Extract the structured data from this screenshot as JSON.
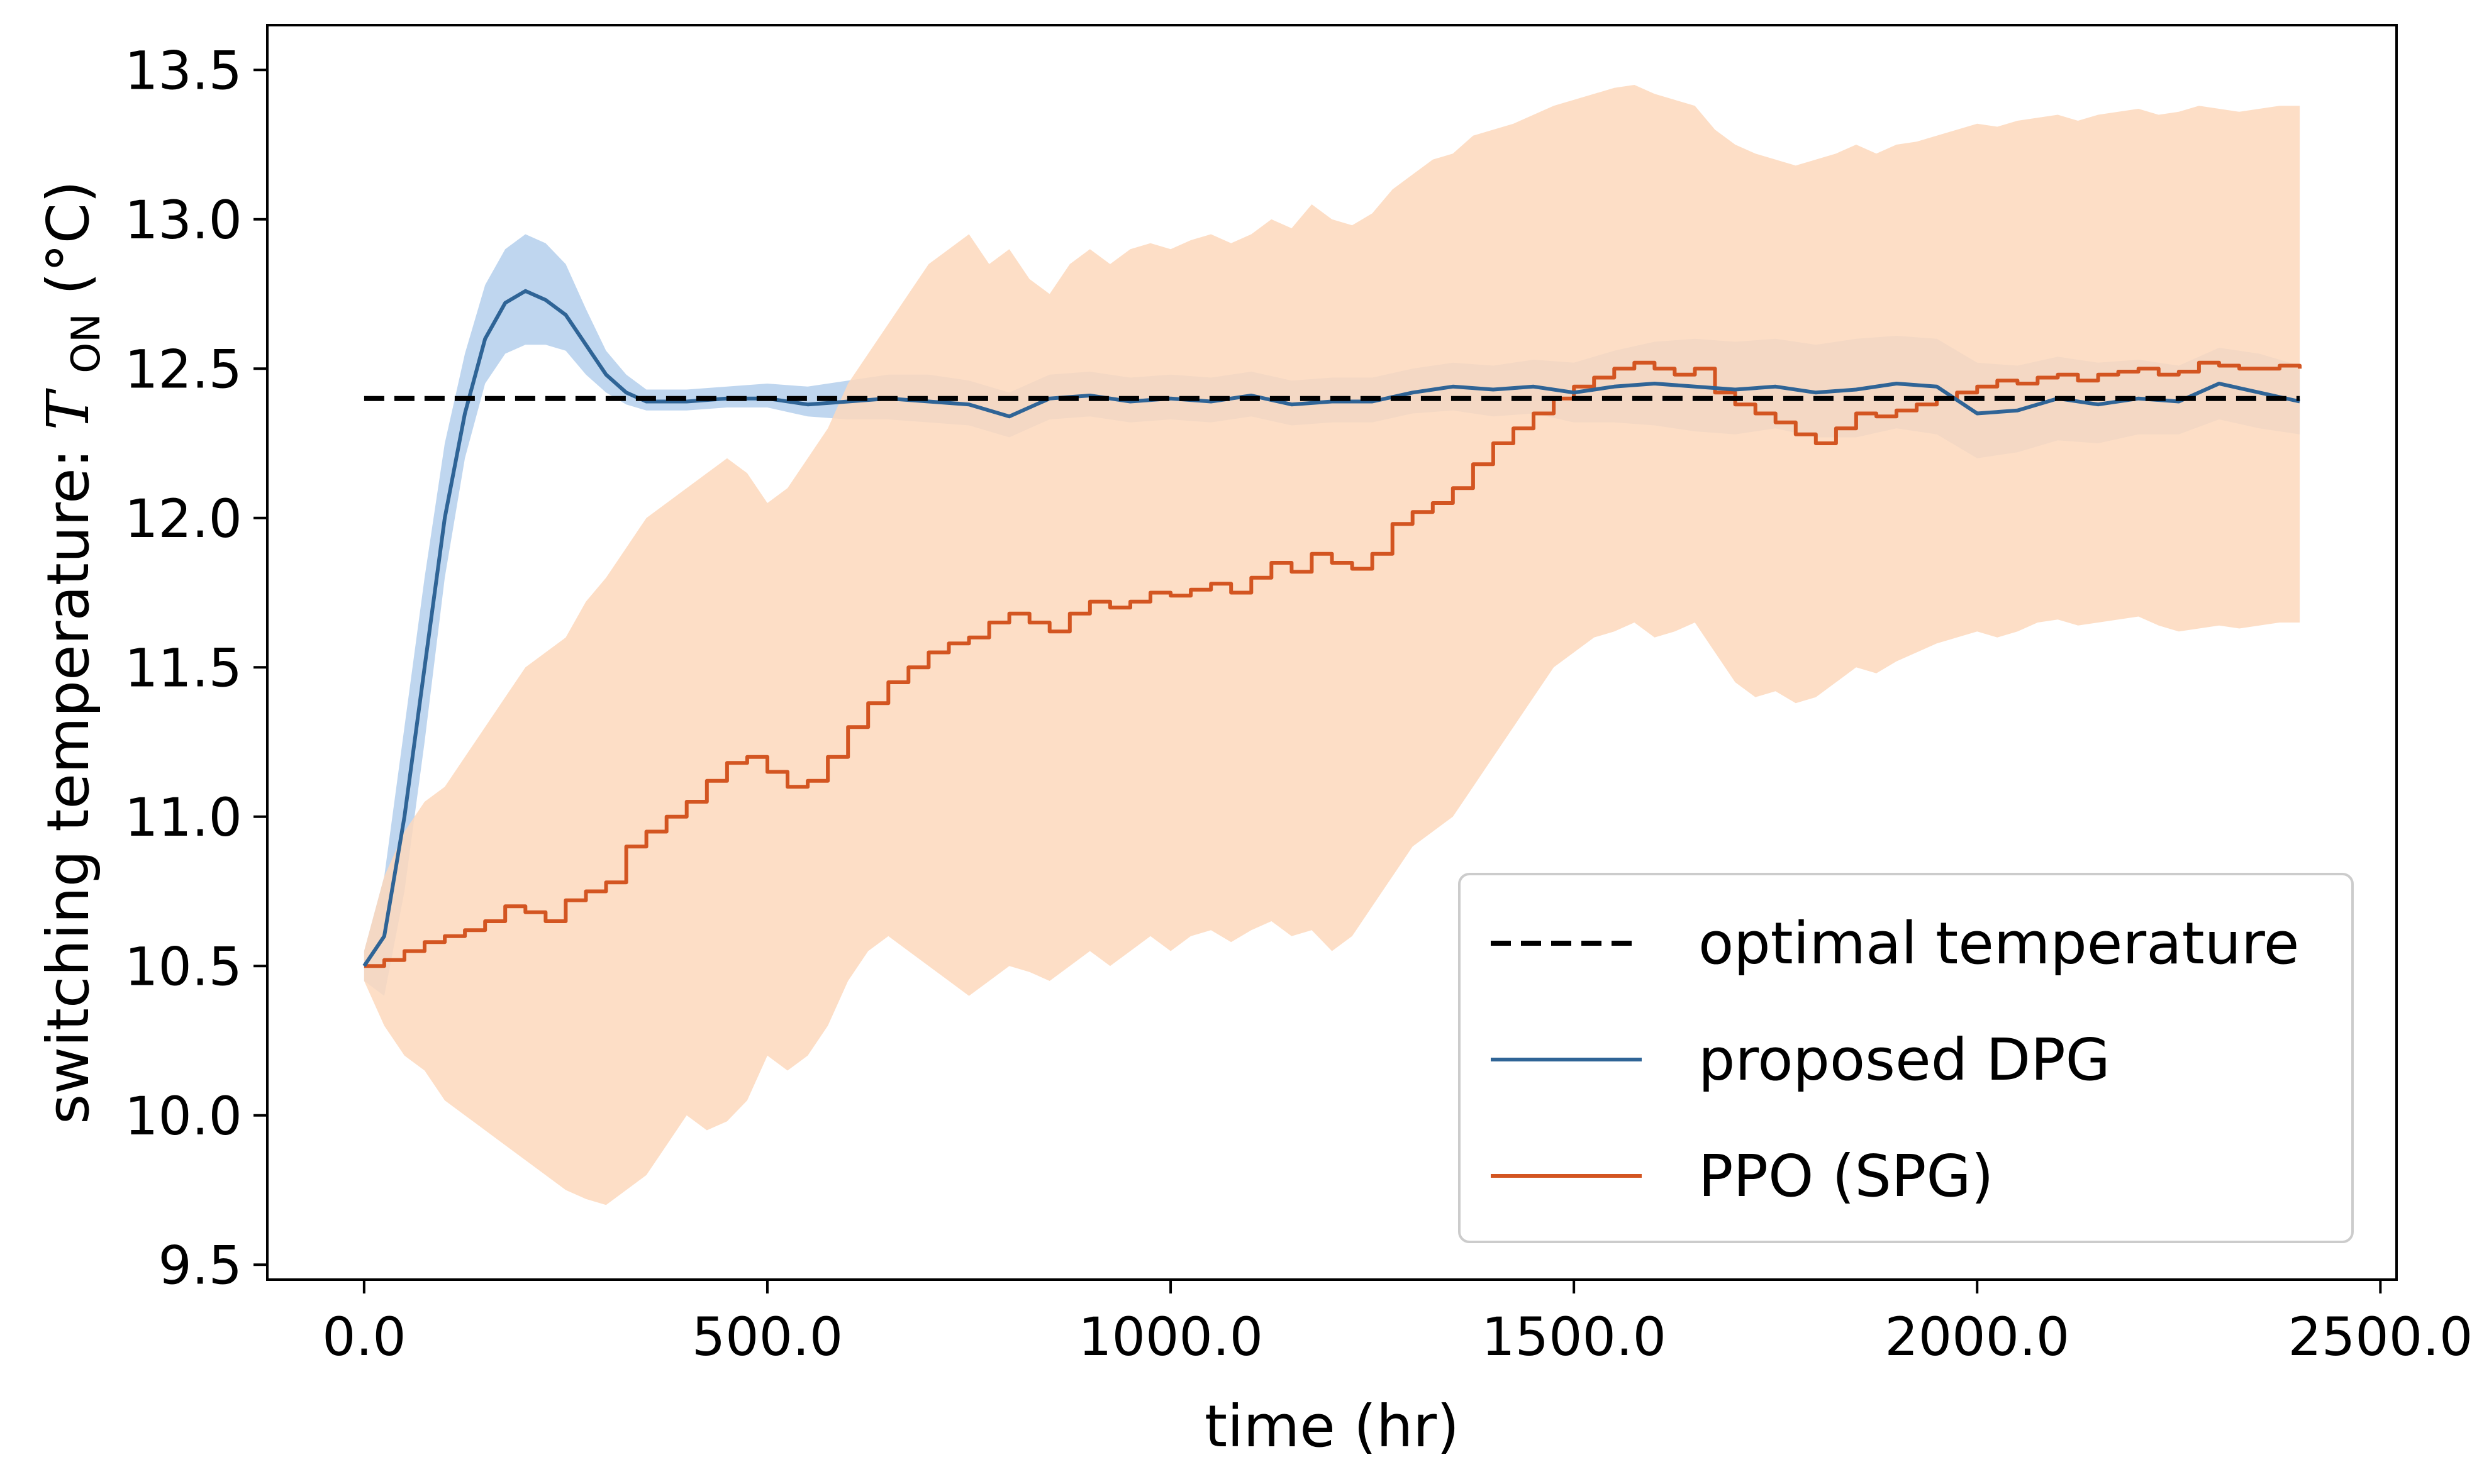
{
  "chart_data": {
    "type": "line",
    "xlabel": "time (hr)",
    "ylabel": {
      "text": "switching temperature: ",
      "symbol": "T",
      "subscript": "ON",
      "unit": "(°C)"
    },
    "xlim": [
      -120,
      2520
    ],
    "ylim": [
      9.45,
      13.65
    ],
    "x_ticks": [
      0,
      500,
      1000,
      1500,
      2000,
      2500
    ],
    "x_tick_labels": [
      "0.0",
      "500.0",
      "1000.0",
      "1500.0",
      "2000.0",
      "2500.0"
    ],
    "y_ticks": [
      9.5,
      10.0,
      10.5,
      11.0,
      11.5,
      12.0,
      12.5,
      13.0,
      13.5
    ],
    "y_tick_labels": [
      "9.5",
      "10.0",
      "10.5",
      "11.0",
      "11.5",
      "12.0",
      "12.5",
      "13.0",
      "13.5"
    ],
    "legend_position": "lower-right",
    "series": [
      {
        "name": "optimal temperature",
        "style": "dashed",
        "color": "#000000",
        "x": [
          0,
          2400
        ],
        "values": [
          12.4,
          12.4
        ]
      },
      {
        "name": "proposed DPG",
        "style": "solid",
        "color": "#2f6496",
        "band_color": "#a9c8ea",
        "x": [
          0,
          25,
          50,
          75,
          100,
          125,
          150,
          175,
          200,
          225,
          250,
          275,
          300,
          325,
          350,
          400,
          450,
          500,
          550,
          600,
          650,
          700,
          750,
          800,
          850,
          900,
          950,
          1000,
          1050,
          1100,
          1150,
          1200,
          1250,
          1300,
          1350,
          1400,
          1450,
          1500,
          1550,
          1600,
          1650,
          1700,
          1750,
          1800,
          1850,
          1900,
          1950,
          2000,
          2050,
          2100,
          2150,
          2200,
          2250,
          2300,
          2350,
          2400
        ],
        "values": [
          10.5,
          10.6,
          11.0,
          11.5,
          12.0,
          12.35,
          12.6,
          12.72,
          12.76,
          12.73,
          12.68,
          12.58,
          12.48,
          12.42,
          12.39,
          12.39,
          12.4,
          12.4,
          12.38,
          12.39,
          12.4,
          12.39,
          12.38,
          12.34,
          12.4,
          12.41,
          12.39,
          12.4,
          12.39,
          12.41,
          12.38,
          12.39,
          12.39,
          12.42,
          12.44,
          12.43,
          12.44,
          12.42,
          12.44,
          12.45,
          12.44,
          12.43,
          12.44,
          12.42,
          12.43,
          12.45,
          12.44,
          12.35,
          12.36,
          12.4,
          12.38,
          12.4,
          12.39,
          12.45,
          12.42,
          12.39
        ],
        "band_lower": [
          10.45,
          10.4,
          10.75,
          11.25,
          11.8,
          12.2,
          12.45,
          12.55,
          12.58,
          12.58,
          12.56,
          12.48,
          12.42,
          12.38,
          12.36,
          12.36,
          12.37,
          12.37,
          12.34,
          12.33,
          12.33,
          12.32,
          12.31,
          12.27,
          12.33,
          12.34,
          12.32,
          12.33,
          12.32,
          12.34,
          12.31,
          12.32,
          12.32,
          12.35,
          12.36,
          12.34,
          12.35,
          12.32,
          12.32,
          12.31,
          12.29,
          12.28,
          12.3,
          12.27,
          12.27,
          12.3,
          12.28,
          12.2,
          12.22,
          12.26,
          12.25,
          12.28,
          12.28,
          12.33,
          12.3,
          12.28
        ],
        "band_upper": [
          10.55,
          10.8,
          11.3,
          11.8,
          12.25,
          12.55,
          12.78,
          12.9,
          12.95,
          12.92,
          12.85,
          12.7,
          12.56,
          12.48,
          12.43,
          12.43,
          12.44,
          12.45,
          12.44,
          12.46,
          12.48,
          12.48,
          12.46,
          12.42,
          12.48,
          12.49,
          12.47,
          12.48,
          12.47,
          12.49,
          12.46,
          12.47,
          12.47,
          12.5,
          12.52,
          12.51,
          12.53,
          12.52,
          12.56,
          12.59,
          12.6,
          12.59,
          12.6,
          12.58,
          12.6,
          12.61,
          12.6,
          12.52,
          12.51,
          12.54,
          12.52,
          12.53,
          12.51,
          12.57,
          12.55,
          12.51
        ]
      },
      {
        "name": "PPO (SPG)",
        "style": "step",
        "color": "#d35521",
        "band_color": "#fdd8bc",
        "x": [
          0,
          25,
          50,
          75,
          100,
          125,
          150,
          175,
          200,
          225,
          250,
          275,
          300,
          325,
          350,
          375,
          400,
          425,
          450,
          475,
          500,
          525,
          550,
          575,
          600,
          625,
          650,
          675,
          700,
          725,
          750,
          775,
          800,
          825,
          850,
          875,
          900,
          925,
          950,
          975,
          1000,
          1025,
          1050,
          1075,
          1100,
          1125,
          1150,
          1175,
          1200,
          1225,
          1250,
          1275,
          1300,
          1325,
          1350,
          1375,
          1400,
          1425,
          1450,
          1475,
          1500,
          1525,
          1550,
          1575,
          1600,
          1625,
          1650,
          1675,
          1700,
          1725,
          1750,
          1775,
          1800,
          1825,
          1850,
          1875,
          1900,
          1925,
          1950,
          1975,
          2000,
          2025,
          2050,
          2075,
          2100,
          2125,
          2150,
          2175,
          2200,
          2225,
          2250,
          2275,
          2300,
          2325,
          2350,
          2375,
          2400
        ],
        "values": [
          10.5,
          10.52,
          10.55,
          10.58,
          10.6,
          10.62,
          10.65,
          10.7,
          10.68,
          10.65,
          10.72,
          10.75,
          10.78,
          10.9,
          10.95,
          11.0,
          11.05,
          11.12,
          11.18,
          11.2,
          11.15,
          11.1,
          11.12,
          11.2,
          11.3,
          11.38,
          11.45,
          11.5,
          11.55,
          11.58,
          11.6,
          11.65,
          11.68,
          11.65,
          11.62,
          11.68,
          11.72,
          11.7,
          11.72,
          11.75,
          11.74,
          11.76,
          11.78,
          11.75,
          11.8,
          11.85,
          11.82,
          11.88,
          11.85,
          11.83,
          11.88,
          11.98,
          12.02,
          12.05,
          12.1,
          12.18,
          12.25,
          12.3,
          12.35,
          12.4,
          12.44,
          12.47,
          12.5,
          12.52,
          12.5,
          12.48,
          12.5,
          12.42,
          12.38,
          12.35,
          12.32,
          12.28,
          12.25,
          12.3,
          12.35,
          12.34,
          12.36,
          12.38,
          12.4,
          12.42,
          12.44,
          12.46,
          12.45,
          12.47,
          12.48,
          12.46,
          12.48,
          12.49,
          12.5,
          12.48,
          12.49,
          12.52,
          12.51,
          12.5,
          12.5,
          12.51,
          12.5
        ],
        "band_lower": [
          10.45,
          10.3,
          10.2,
          10.15,
          10.05,
          10.0,
          9.95,
          9.9,
          9.85,
          9.8,
          9.75,
          9.72,
          9.7,
          9.75,
          9.8,
          9.9,
          10.0,
          9.95,
          9.98,
          10.05,
          10.2,
          10.15,
          10.2,
          10.3,
          10.45,
          10.55,
          10.6,
          10.55,
          10.5,
          10.45,
          10.4,
          10.45,
          10.5,
          10.48,
          10.45,
          10.5,
          10.55,
          10.5,
          10.55,
          10.6,
          10.55,
          10.6,
          10.62,
          10.58,
          10.62,
          10.65,
          10.6,
          10.62,
          10.55,
          10.6,
          10.7,
          10.8,
          10.9,
          10.95,
          11.0,
          11.1,
          11.2,
          11.3,
          11.4,
          11.5,
          11.55,
          11.6,
          11.62,
          11.65,
          11.6,
          11.62,
          11.65,
          11.55,
          11.45,
          11.4,
          11.42,
          11.38,
          11.4,
          11.45,
          11.5,
          11.48,
          11.52,
          11.55,
          11.58,
          11.6,
          11.62,
          11.6,
          11.62,
          11.65,
          11.66,
          11.64,
          11.65,
          11.66,
          11.67,
          11.64,
          11.62,
          11.63,
          11.64,
          11.63,
          11.64,
          11.65,
          11.65
        ],
        "band_upper": [
          10.55,
          10.8,
          10.95,
          11.05,
          11.1,
          11.2,
          11.3,
          11.4,
          11.5,
          11.55,
          11.6,
          11.72,
          11.8,
          11.9,
          12.0,
          12.05,
          12.1,
          12.15,
          12.2,
          12.15,
          12.05,
          12.1,
          12.2,
          12.3,
          12.45,
          12.55,
          12.65,
          12.75,
          12.85,
          12.9,
          12.95,
          12.85,
          12.9,
          12.8,
          12.75,
          12.85,
          12.9,
          12.85,
          12.9,
          12.92,
          12.9,
          12.93,
          12.95,
          12.92,
          12.95,
          13.0,
          12.97,
          13.05,
          13.0,
          12.98,
          13.02,
          13.1,
          13.15,
          13.2,
          13.22,
          13.28,
          13.3,
          13.32,
          13.35,
          13.38,
          13.4,
          13.42,
          13.44,
          13.45,
          13.42,
          13.4,
          13.38,
          13.3,
          13.25,
          13.22,
          13.2,
          13.18,
          13.2,
          13.22,
          13.25,
          13.22,
          13.25,
          13.26,
          13.28,
          13.3,
          13.32,
          13.31,
          13.33,
          13.34,
          13.35,
          13.33,
          13.35,
          13.36,
          13.37,
          13.35,
          13.36,
          13.38,
          13.37,
          13.36,
          13.37,
          13.38,
          13.38
        ]
      }
    ]
  }
}
